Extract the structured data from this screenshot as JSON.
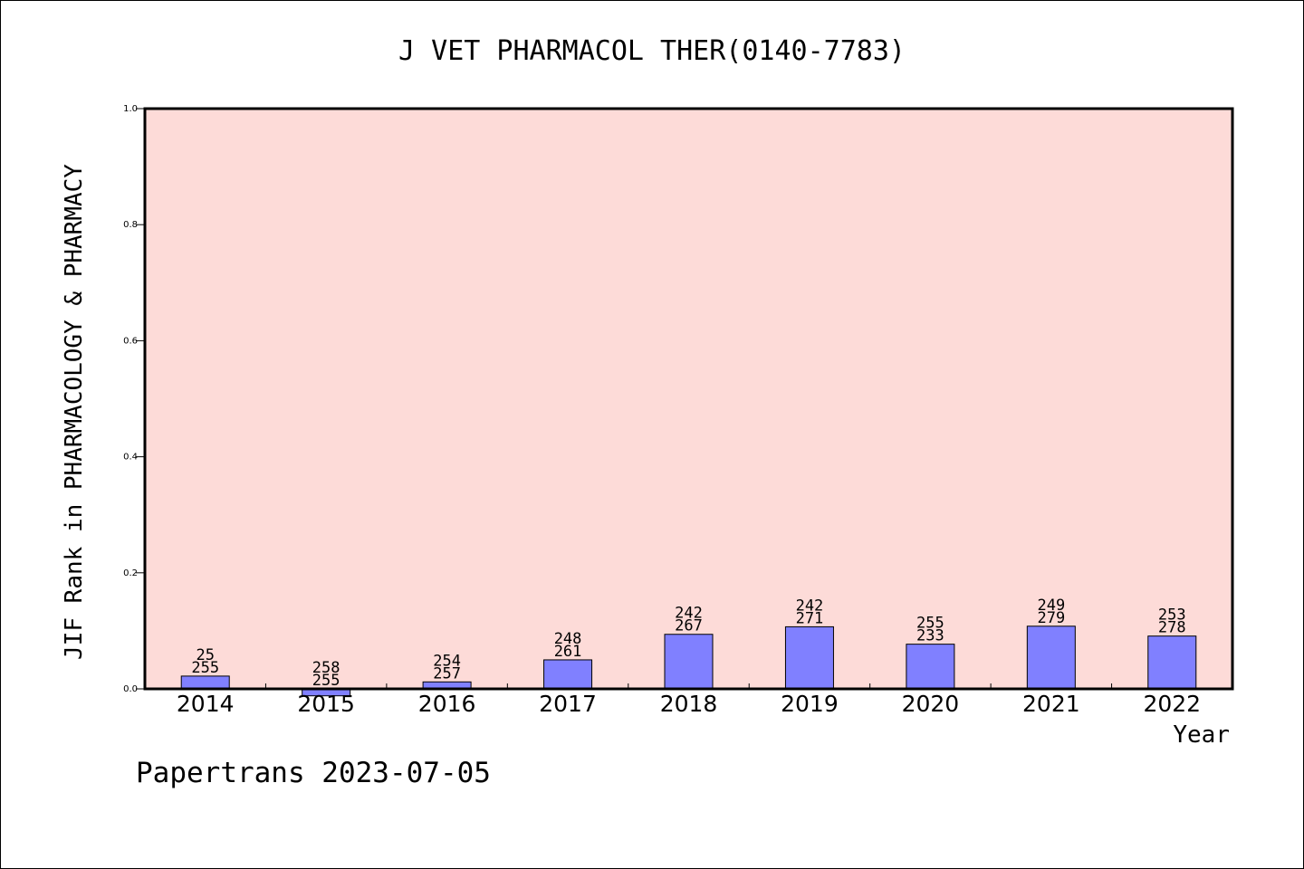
{
  "chart_data": {
    "type": "bar",
    "title": "J VET PHARMACOL THER(0140-7783)",
    "ylabel": "JIF Rank in PHARMACOLOGY & PHARMACY",
    "xlabel": "Year",
    "ylim": [
      0,
      1.0
    ],
    "yticks": [
      "0.0",
      "0.2",
      "0.4",
      "0.6",
      "0.8",
      "1.0"
    ],
    "grid": false,
    "categories": [
      "2014",
      "2015",
      "2016",
      "2017",
      "2018",
      "2019",
      "2020",
      "2021",
      "2022"
    ],
    "values": [
      0.022,
      -0.012,
      0.012,
      0.05,
      0.094,
      0.107,
      0.077,
      0.108,
      0.091
    ],
    "labels_top": [
      "25",
      "258",
      "254",
      "248",
      "242",
      "242",
      "255",
      "249",
      "253"
    ],
    "labels_bottom": [
      "255",
      "255",
      "257",
      "261",
      "267",
      "271",
      "233",
      "279",
      "278"
    ],
    "colors": {
      "plot_bg": "#fddbd8",
      "bar": "#8080ff",
      "axis": "#000000"
    }
  },
  "footer": {
    "credit": "Papertrans 2023-07-05"
  }
}
